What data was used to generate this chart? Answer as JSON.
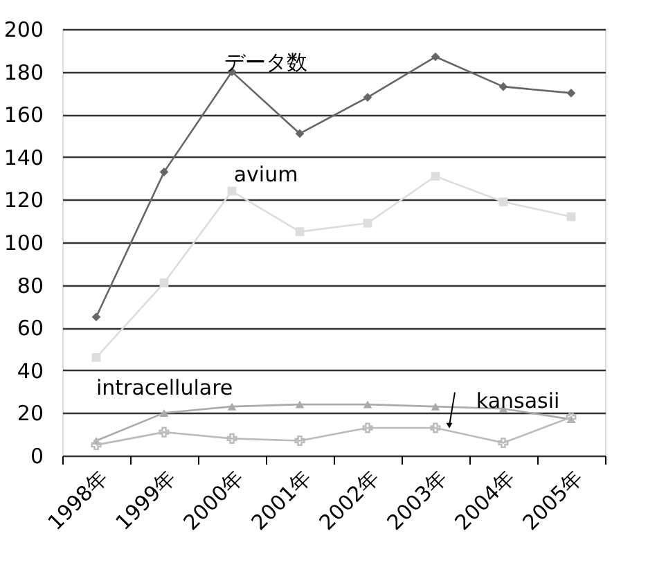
{
  "chart_data": {
    "type": "line",
    "categories": [
      "1998年",
      "1999年",
      "2000年",
      "2001年",
      "2002年",
      "2003年",
      "2004年",
      "2005年"
    ],
    "series": [
      {
        "name": "データ数",
        "color": "#666666",
        "marker": "diamond",
        "values": [
          65,
          133,
          180,
          151,
          168,
          187,
          173,
          170
        ]
      },
      {
        "name": "avium",
        "color": "#dddddd",
        "marker": "square",
        "values": [
          46,
          81,
          124,
          105,
          109,
          131,
          119,
          112
        ]
      },
      {
        "name": "intracellulare",
        "color": "#aaaaaa",
        "marker": "triangle",
        "values": [
          7,
          20,
          23,
          24,
          24,
          23,
          22,
          17
        ]
      },
      {
        "name": "kansasii",
        "color": "#bbbbbb",
        "marker": "cross",
        "values": [
          5,
          11,
          8,
          7,
          13,
          13,
          6,
          18
        ]
      }
    ],
    "ylim": [
      0,
      200
    ],
    "yticks": [
      0,
      20,
      40,
      60,
      80,
      100,
      120,
      140,
      160,
      180,
      200
    ],
    "grid": "y",
    "legend": false,
    "line_style": "solid"
  }
}
